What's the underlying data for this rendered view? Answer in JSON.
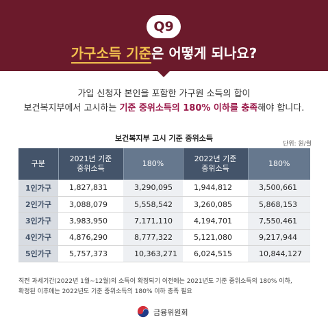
{
  "header": {
    "badge": "Q9",
    "title_highlight": "가구소득 기준",
    "title_rest": "은 어떻게 되나요?"
  },
  "description": {
    "line1": "가입 신청자 본인을 포함한 가구원 소득의 합이",
    "line2_prefix": "보건복지부에서 고시하는 ",
    "line2_emphasis": "기준 중위소득의 180% 이하를 충족",
    "line2_suffix": "해야 합니다."
  },
  "table": {
    "title": "보건복지부 고시 기준 중위소득",
    "unit": "단위: 원/월",
    "headers": {
      "category": "구분",
      "y2021_line1": "2021년 기준",
      "y2021_line2": "중위소득",
      "y2021_pct": "180%",
      "y2022_line1": "2022년 기준",
      "y2022_line2": "중위소득",
      "y2022_pct": "180%"
    },
    "rows": [
      {
        "label": "1인가구",
        "m2021": "1,827,831",
        "p2021": "3,290,095",
        "m2022": "1,944,812",
        "p2022": "3,500,661"
      },
      {
        "label": "2인가구",
        "m2021": "3,088,079",
        "p2021": "5,558,542",
        "m2022": "3,260,085",
        "p2022": "5,868,153"
      },
      {
        "label": "3인가구",
        "m2021": "3,983,950",
        "p2021": "7,171,110",
        "m2022": "4,194,701",
        "p2022": "7,550,461"
      },
      {
        "label": "4인가구",
        "m2021": "4,876,290",
        "p2021": "8,777,322",
        "m2022": "5,121,080",
        "p2022": "9,217,944"
      },
      {
        "label": "5인가구",
        "m2021": "5,757,373",
        "p2021": "10,363,271",
        "m2022": "6,024,515",
        "p2022": "10,844,127"
      }
    ]
  },
  "footnote": {
    "line1": "직전 과세기간(2022년 1월~12월)의 소득이 확정되기 이전에는 2021년도 기준 중위소득의 180% 이하,",
    "line2": "확정된 이후에는 2022년도 기준 중위소득의 180% 이하 충족 필요"
  },
  "footer": {
    "org_name": "금융위원회",
    "logo_icon": "taegeuk-emblem-icon"
  },
  "colors": {
    "header_bg": "#6b1a2b",
    "highlight": "#f2c14e",
    "emphasis": "#9b1b4b",
    "table_header_dark": "#44546a",
    "table_header_light": "#66788e"
  }
}
